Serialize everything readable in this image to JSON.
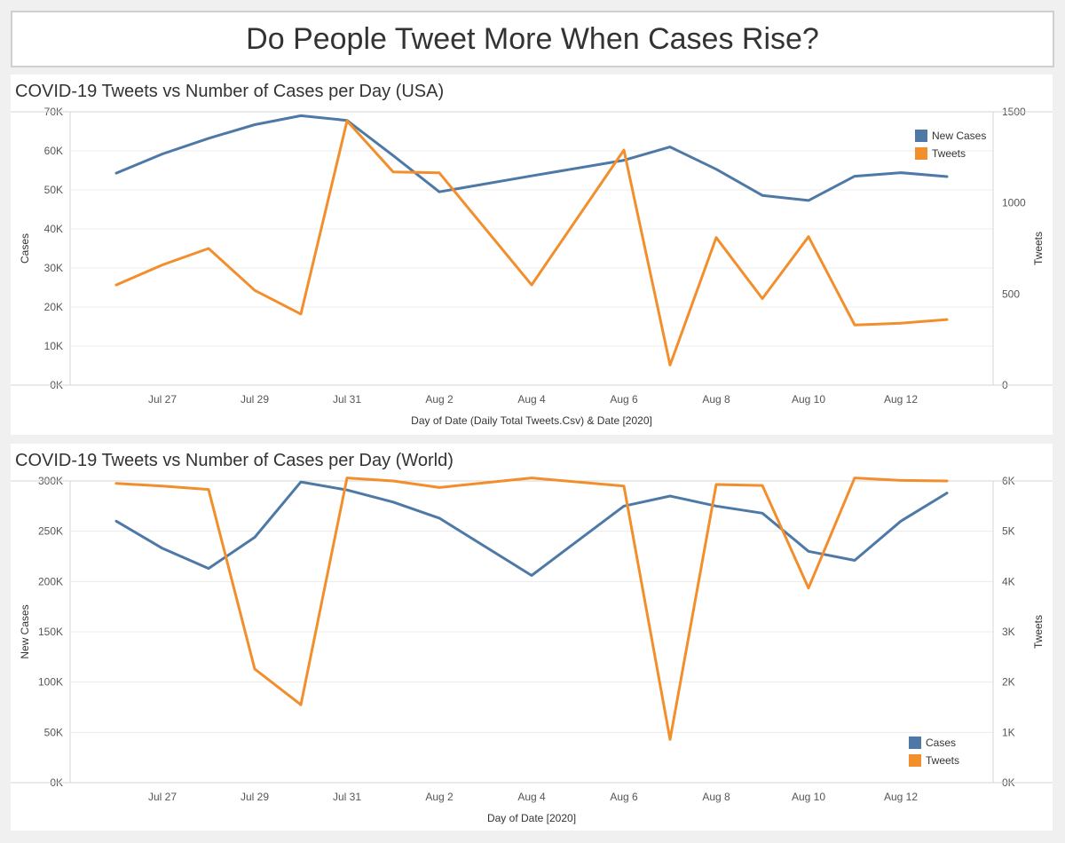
{
  "page_title": "Do People Tweet More When Cases Rise?",
  "colors": {
    "cases": "#4e79a7",
    "tweets": "#f28e2b",
    "grid": "#ececec",
    "axis": "#d4d4d4"
  },
  "chart_data": [
    {
      "type": "line",
      "title": "COVID-19 Tweets vs Number of Cases per Day (USA)",
      "xlabel": "Day of Date (Daily Total Tweets.Csv) & Date [2020]",
      "ylabel": "Cases",
      "y2label": "Tweets",
      "x": [
        "2020-07-26",
        "2020-07-27",
        "2020-07-28",
        "2020-07-29",
        "2020-07-30",
        "2020-07-31",
        "2020-08-01",
        "2020-08-02",
        "2020-08-04",
        "2020-08-06",
        "2020-08-07",
        "2020-08-08",
        "2020-08-09",
        "2020-08-10",
        "2020-08-11",
        "2020-08-12",
        "2020-08-13"
      ],
      "x_ticks": [
        "Jul 27",
        "Jul 29",
        "Jul 31",
        "Aug 2",
        "Aug 4",
        "Aug 6",
        "Aug 8",
        "Aug 10",
        "Aug 12"
      ],
      "ylim": [
        0,
        70000
      ],
      "y_ticks": [
        "0K",
        "10K",
        "20K",
        "30K",
        "40K",
        "50K",
        "60K",
        "70K"
      ],
      "y2lim": [
        0,
        1500
      ],
      "y2_ticks": [
        "0",
        "500",
        "1000",
        "1500"
      ],
      "legend_position": "top-right",
      "series": [
        {
          "name": "New Cases",
          "axis": "left",
          "values": [
            54300,
            59200,
            63200,
            66700,
            69000,
            67800,
            58800,
            49500,
            53600,
            57600,
            61000,
            55300,
            48600,
            47300,
            53500,
            54400,
            53400
          ]
        },
        {
          "name": "Tweets",
          "axis": "right",
          "values": [
            550,
            660,
            750,
            520,
            390,
            1450,
            1170,
            1165,
            550,
            1290,
            110,
            810,
            475,
            815,
            330,
            340,
            360
          ]
        }
      ]
    },
    {
      "type": "line",
      "title": "COVID-19 Tweets vs Number of Cases per Day (World)",
      "xlabel": "Day of Date [2020]",
      "ylabel": "New Cases",
      "y2label": "Tweets",
      "x": [
        "2020-07-26",
        "2020-07-27",
        "2020-07-28",
        "2020-07-29",
        "2020-07-30",
        "2020-07-31",
        "2020-08-01",
        "2020-08-02",
        "2020-08-04",
        "2020-08-06",
        "2020-08-07",
        "2020-08-08",
        "2020-08-09",
        "2020-08-10",
        "2020-08-11",
        "2020-08-12",
        "2020-08-13"
      ],
      "x_ticks": [
        "Jul 27",
        "Jul 29",
        "Jul 31",
        "Aug 2",
        "Aug 4",
        "Aug 6",
        "Aug 8",
        "Aug 10",
        "Aug 12"
      ],
      "ylim": [
        0,
        300000
      ],
      "y_ticks": [
        "0K",
        "50K",
        "100K",
        "150K",
        "200K",
        "250K",
        "300K"
      ],
      "y2lim": [
        0,
        6000
      ],
      "y2_ticks": [
        "0K",
        "1K",
        "2K",
        "3K",
        "4K",
        "5K",
        "6K"
      ],
      "legend_position": "bottom-right",
      "series": [
        {
          "name": "Cases",
          "axis": "left",
          "values": [
            260000,
            233000,
            213000,
            244000,
            299000,
            291000,
            279000,
            263000,
            206000,
            275000,
            285000,
            275000,
            268000,
            230000,
            221000,
            260000,
            288000
          ]
        },
        {
          "name": "Tweets",
          "axis": "right",
          "values": [
            5950,
            5900,
            5830,
            2260,
            1550,
            6060,
            6000,
            5870,
            6060,
            5900,
            860,
            5930,
            5910,
            3870,
            6060,
            6010,
            6000
          ]
        }
      ]
    }
  ]
}
